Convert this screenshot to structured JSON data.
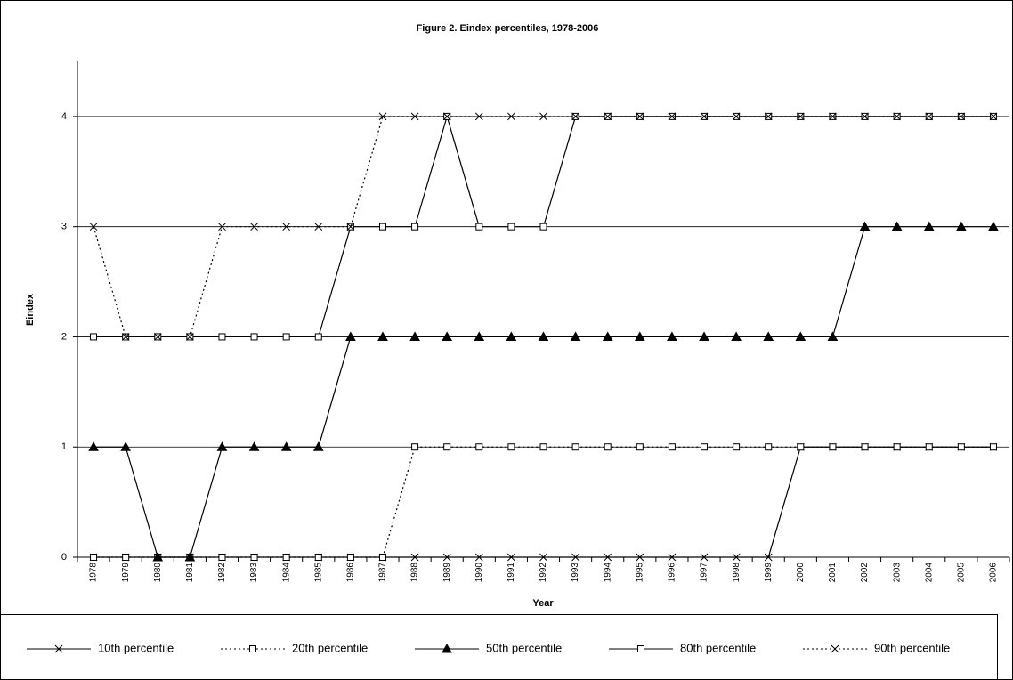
{
  "chart_data": {
    "type": "line",
    "title": "Figure 2. Eindex percentiles, 1978-2006",
    "x_label": "Year",
    "y_label": "Eindex",
    "categories": [
      "1978",
      "1979",
      "1980",
      "1981",
      "1982",
      "1983",
      "1984",
      "1985",
      "1986",
      "1987",
      "1988",
      "1989",
      "1990",
      "1991",
      "1992",
      "1993",
      "1994",
      "1995",
      "1996",
      "1997",
      "1998",
      "1999",
      "2000",
      "2001",
      "2002",
      "2003",
      "2004",
      "2005",
      "2006"
    ],
    "series": [
      {
        "name": "10th percentile",
        "color": "#000000",
        "style": "solid",
        "marker": "x",
        "values": [
          0,
          0,
          0,
          0,
          0,
          0,
          0,
          0,
          0,
          0,
          0,
          0,
          0,
          0,
          0,
          0,
          0,
          0,
          0,
          0,
          0,
          0,
          1,
          1,
          1,
          1,
          1,
          1,
          1
        ]
      },
      {
        "name": "20th percentile",
        "color": "#000000",
        "style": "dotted",
        "marker": "square",
        "values": [
          0,
          0,
          0,
          0,
          0,
          0,
          0,
          0,
          0,
          0,
          1,
          1,
          1,
          1,
          1,
          1,
          1,
          1,
          1,
          1,
          1,
          1,
          1,
          1,
          1,
          1,
          1,
          1,
          1
        ]
      },
      {
        "name": "50th percentile",
        "color": "#000000",
        "style": "solid",
        "marker": "triangle",
        "values": [
          1,
          1,
          0,
          0,
          1,
          1,
          1,
          1,
          2,
          2,
          2,
          2,
          2,
          2,
          2,
          2,
          2,
          2,
          2,
          2,
          2,
          2,
          2,
          2,
          3,
          3,
          3,
          3,
          3
        ]
      },
      {
        "name": "80th percentile",
        "color": "#000000",
        "style": "solid",
        "marker": "square",
        "values": [
          2,
          2,
          2,
          2,
          2,
          2,
          2,
          2,
          3,
          3,
          3,
          4,
          3,
          3,
          3,
          4,
          4,
          4,
          4,
          4,
          4,
          4,
          4,
          4,
          4,
          4,
          4,
          4,
          4
        ]
      },
      {
        "name": "90th percentile",
        "color": "#000000",
        "style": "dotted",
        "marker": "x",
        "values": [
          3,
          2,
          2,
          2,
          3,
          3,
          3,
          3,
          3,
          4,
          4,
          4,
          4,
          4,
          4,
          4,
          4,
          4,
          4,
          4,
          4,
          4,
          4,
          4,
          4,
          4,
          4,
          4,
          4
        ]
      }
    ],
    "ylim": [
      0,
      4.5
    ],
    "yticks": [
      0,
      1,
      2,
      3,
      4
    ],
    "grid": true,
    "legend": "bottom"
  }
}
